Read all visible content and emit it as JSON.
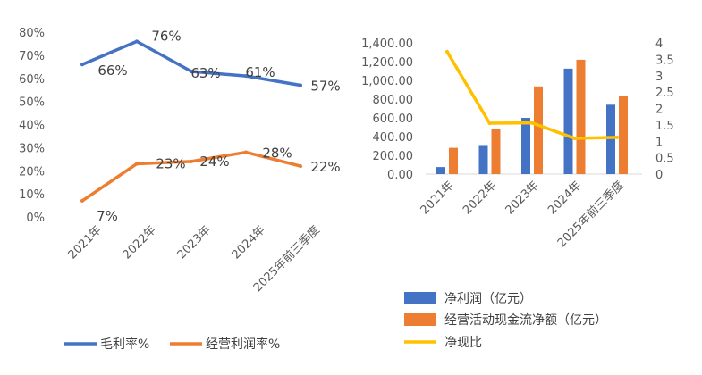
{
  "chart_data": [
    {
      "type": "line",
      "categories": [
        "2021年",
        "2022年",
        "2023年",
        "2024年",
        "2025年前三季度"
      ],
      "series": [
        {
          "name": "毛利率%",
          "values": [
            66,
            76,
            63,
            61,
            57
          ],
          "labels": [
            "66%",
            "76%",
            "63%",
            "61%",
            "57%"
          ],
          "color": "#4472C4"
        },
        {
          "name": "经营利润率%",
          "values": [
            7,
            23,
            24,
            28,
            22
          ],
          "labels": [
            "7%",
            "23%",
            "24%",
            "28%",
            "22%"
          ],
          "color": "#ED7D31"
        }
      ],
      "yticks": [
        "0%",
        "10%",
        "20%",
        "30%",
        "40%",
        "50%",
        "60%",
        "70%",
        "80%"
      ],
      "ylim": [
        0,
        80
      ],
      "grid": false,
      "legend": "bottom"
    },
    {
      "type": "bar",
      "categories": [
        "2021年",
        "2022年",
        "2023年",
        "2024年",
        "2025年前三季度"
      ],
      "series": [
        {
          "name": "净利润（亿元）",
          "values": [
            75,
            310,
            600,
            1125,
            740
          ],
          "color": "#4472C4",
          "axis": "left"
        },
        {
          "name": "经营活动现金流净额（亿元）",
          "values": [
            280,
            480,
            935,
            1220,
            830
          ],
          "color": "#ED7D31",
          "axis": "left"
        },
        {
          "name": "净现比",
          "values": [
            3.73,
            1.55,
            1.56,
            1.09,
            1.12
          ],
          "color": "#FFC000",
          "axis": "right",
          "type": "line"
        }
      ],
      "yticks_left": [
        "0.00",
        "200.00",
        "400.00",
        "600.00",
        "800.00",
        "1,000.00",
        "1,200.00",
        "1,400.00"
      ],
      "ylim_left": [
        0,
        1400
      ],
      "yticks_right": [
        "0",
        "0.5",
        "1",
        "1.5",
        "2",
        "2.5",
        "3",
        "3.5",
        "4"
      ],
      "ylim_right": [
        0,
        4
      ],
      "grid": false,
      "legend": "bottom"
    }
  ]
}
